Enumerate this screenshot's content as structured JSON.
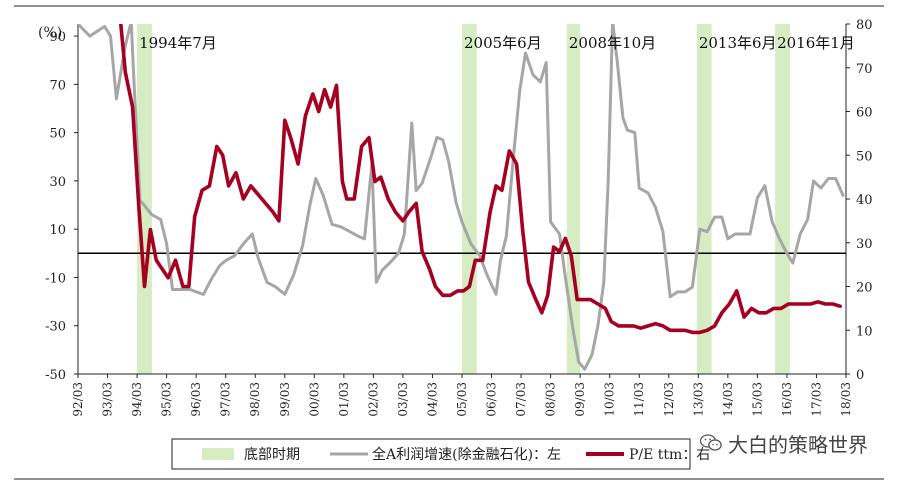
{
  "chart_data": {
    "type": "line",
    "y_left_unit": "(%)",
    "y_left_range": [
      -50,
      95
    ],
    "y_left_ticks": [
      -50,
      -30,
      -10,
      10,
      30,
      50,
      70,
      90
    ],
    "y_right_range": [
      0,
      80
    ],
    "y_right_ticks": [
      0,
      10,
      20,
      30,
      40,
      50,
      60,
      70,
      80
    ],
    "x_range": [
      1992.0,
      2018.0
    ],
    "x_ticks": [
      "92/03",
      "93/03",
      "94/03",
      "95/03",
      "96/03",
      "97/03",
      "98/03",
      "99/03",
      "00/03",
      "01/03",
      "02/03",
      "03/03",
      "04/03",
      "05/03",
      "06/03",
      "07/03",
      "08/03",
      "09/03",
      "10/03",
      "11/03",
      "12/03",
      "13/03",
      "14/03",
      "15/03",
      "16/03",
      "17/03",
      "18/03"
    ],
    "bottom_periods": [
      {
        "label": "1994年7月",
        "start": 1994.0,
        "end": 1994.5
      },
      {
        "label": "2005年6月",
        "start": 2005.0,
        "end": 2005.5
      },
      {
        "label": "2008年10月",
        "start": 2008.55,
        "end": 2009.0
      },
      {
        "label": "2013年6月",
        "start": 2012.95,
        "end": 2013.45
      },
      {
        "label": "2016年1月",
        "start": 2015.6,
        "end": 2016.1
      }
    ],
    "series": [
      {
        "name": "全A利润增速(除金融石化)：左",
        "axis": "left",
        "color": "#a6a6a6",
        "points": [
          [
            1992.0,
            95
          ],
          [
            1992.4,
            90
          ],
          [
            1992.9,
            94
          ],
          [
            1993.1,
            90
          ],
          [
            1993.3,
            64
          ],
          [
            1993.6,
            86
          ],
          [
            1993.8,
            96
          ],
          [
            1993.9,
            70
          ],
          [
            1994.1,
            22
          ],
          [
            1994.5,
            16
          ],
          [
            1994.8,
            14
          ],
          [
            1995.0,
            4
          ],
          [
            1995.2,
            -15
          ],
          [
            1995.5,
            -15
          ],
          [
            1995.8,
            -15
          ],
          [
            1996.0,
            -16
          ],
          [
            1996.25,
            -17
          ],
          [
            1996.5,
            -11
          ],
          [
            1996.8,
            -5
          ],
          [
            1997.0,
            -3
          ],
          [
            1997.3,
            -1
          ],
          [
            1997.6,
            4
          ],
          [
            1997.9,
            8
          ],
          [
            1998.1,
            -2
          ],
          [
            1998.4,
            -12
          ],
          [
            1998.7,
            -14
          ],
          [
            1999.0,
            -17
          ],
          [
            1999.3,
            -9
          ],
          [
            1999.6,
            3
          ],
          [
            1999.85,
            20
          ],
          [
            2000.05,
            31
          ],
          [
            2000.3,
            24
          ],
          [
            2000.6,
            12
          ],
          [
            2000.9,
            11
          ],
          [
            2001.2,
            9
          ],
          [
            2001.5,
            7
          ],
          [
            2001.7,
            6
          ],
          [
            2001.95,
            37
          ],
          [
            2002.1,
            -12
          ],
          [
            2002.3,
            -7
          ],
          [
            2002.55,
            -4
          ],
          [
            2002.85,
            0
          ],
          [
            2003.05,
            8
          ],
          [
            2003.3,
            54
          ],
          [
            2003.45,
            26
          ],
          [
            2003.65,
            29
          ],
          [
            2003.95,
            40
          ],
          [
            2004.15,
            48
          ],
          [
            2004.35,
            47
          ],
          [
            2004.55,
            38
          ],
          [
            2004.8,
            21
          ],
          [
            2005.0,
            13
          ],
          [
            2005.3,
            4
          ],
          [
            2005.6,
            -1
          ],
          [
            2005.85,
            -9
          ],
          [
            2006.0,
            -13
          ],
          [
            2006.15,
            -17
          ],
          [
            2006.3,
            -3
          ],
          [
            2006.5,
            7
          ],
          [
            2006.75,
            41
          ],
          [
            2006.95,
            67
          ],
          [
            2007.15,
            83
          ],
          [
            2007.4,
            74
          ],
          [
            2007.65,
            71
          ],
          [
            2007.85,
            79
          ],
          [
            2008.0,
            13
          ],
          [
            2008.3,
            8
          ],
          [
            2008.5,
            -10
          ],
          [
            2008.75,
            -31
          ],
          [
            2008.95,
            -45
          ],
          [
            2009.15,
            -48
          ],
          [
            2009.4,
            -42
          ],
          [
            2009.6,
            -30
          ],
          [
            2009.8,
            -12
          ],
          [
            2009.95,
            30
          ],
          [
            2010.1,
            96
          ],
          [
            2010.25,
            80
          ],
          [
            2010.45,
            56
          ],
          [
            2010.6,
            51
          ],
          [
            2010.85,
            50
          ],
          [
            2011.0,
            27
          ],
          [
            2011.3,
            25
          ],
          [
            2011.55,
            19
          ],
          [
            2011.8,
            9
          ],
          [
            2012.05,
            -18
          ],
          [
            2012.3,
            -16
          ],
          [
            2012.55,
            -16
          ],
          [
            2012.8,
            -14
          ],
          [
            2013.05,
            10
          ],
          [
            2013.3,
            9
          ],
          [
            2013.55,
            15
          ],
          [
            2013.8,
            15
          ],
          [
            2014.0,
            6
          ],
          [
            2014.25,
            8
          ],
          [
            2014.5,
            8
          ],
          [
            2014.75,
            8
          ],
          [
            2015.0,
            23
          ],
          [
            2015.25,
            28
          ],
          [
            2015.5,
            13
          ],
          [
            2015.75,
            6
          ],
          [
            2016.0,
            0
          ],
          [
            2016.2,
            -4
          ],
          [
            2016.45,
            8
          ],
          [
            2016.7,
            14
          ],
          [
            2016.9,
            30
          ],
          [
            2017.15,
            27
          ],
          [
            2017.4,
            31
          ],
          [
            2017.65,
            31
          ],
          [
            2017.9,
            24
          ]
        ]
      },
      {
        "name": "P/E ttm：右",
        "axis": "right",
        "color": "#a50021",
        "points": [
          [
            1993.45,
            80
          ],
          [
            1993.6,
            69
          ],
          [
            1993.85,
            61
          ],
          [
            1994.05,
            39
          ],
          [
            1994.25,
            20
          ],
          [
            1994.45,
            33
          ],
          [
            1994.65,
            26
          ],
          [
            1994.85,
            24
          ],
          [
            1995.05,
            22
          ],
          [
            1995.3,
            26
          ],
          [
            1995.55,
            20
          ],
          [
            1995.75,
            20
          ],
          [
            1995.95,
            36
          ],
          [
            1996.2,
            42
          ],
          [
            1996.45,
            43
          ],
          [
            1996.7,
            52
          ],
          [
            1996.9,
            50
          ],
          [
            1997.1,
            43
          ],
          [
            1997.35,
            46
          ],
          [
            1997.6,
            40
          ],
          [
            1997.85,
            43
          ],
          [
            1998.1,
            41
          ],
          [
            1998.35,
            39
          ],
          [
            1998.6,
            37
          ],
          [
            1998.8,
            35
          ],
          [
            1999.0,
            58
          ],
          [
            1999.2,
            54
          ],
          [
            1999.45,
            48
          ],
          [
            1999.7,
            59
          ],
          [
            1999.95,
            64
          ],
          [
            2000.15,
            60
          ],
          [
            2000.35,
            65
          ],
          [
            2000.55,
            61
          ],
          [
            2000.75,
            66
          ],
          [
            2000.95,
            44
          ],
          [
            2001.1,
            40
          ],
          [
            2001.35,
            40
          ],
          [
            2001.6,
            52
          ],
          [
            2001.85,
            54
          ],
          [
            2002.05,
            44
          ],
          [
            2002.25,
            45
          ],
          [
            2002.5,
            40
          ],
          [
            2002.75,
            37
          ],
          [
            2003.0,
            35
          ],
          [
            2003.2,
            37
          ],
          [
            2003.45,
            39
          ],
          [
            2003.65,
            28
          ],
          [
            2003.9,
            24
          ],
          [
            2004.1,
            20
          ],
          [
            2004.35,
            18
          ],
          [
            2004.6,
            18
          ],
          [
            2004.85,
            19
          ],
          [
            2005.05,
            19
          ],
          [
            2005.25,
            20
          ],
          [
            2005.45,
            26
          ],
          [
            2005.7,
            26
          ],
          [
            2005.95,
            37
          ],
          [
            2006.15,
            43
          ],
          [
            2006.35,
            42
          ],
          [
            2006.6,
            51
          ],
          [
            2006.85,
            48
          ],
          [
            2007.05,
            33
          ],
          [
            2007.25,
            21
          ],
          [
            2007.5,
            17
          ],
          [
            2007.7,
            14
          ],
          [
            2007.9,
            18
          ],
          [
            2008.1,
            29
          ],
          [
            2008.3,
            28
          ],
          [
            2008.5,
            31
          ],
          [
            2008.7,
            27
          ],
          [
            2008.9,
            17
          ],
          [
            2009.1,
            17
          ],
          [
            2009.35,
            17
          ],
          [
            2009.6,
            16
          ],
          [
            2009.85,
            15
          ],
          [
            2010.05,
            12
          ],
          [
            2010.3,
            11
          ],
          [
            2010.55,
            11
          ],
          [
            2010.8,
            11
          ],
          [
            2011.05,
            10.5
          ],
          [
            2011.3,
            11
          ],
          [
            2011.55,
            11.5
          ],
          [
            2011.8,
            11
          ],
          [
            2012.05,
            10
          ],
          [
            2012.3,
            10
          ],
          [
            2012.55,
            10
          ],
          [
            2012.8,
            9.5
          ],
          [
            2013.05,
            9.5
          ],
          [
            2013.3,
            10
          ],
          [
            2013.55,
            11
          ],
          [
            2013.8,
            14
          ],
          [
            2014.05,
            16
          ],
          [
            2014.3,
            19
          ],
          [
            2014.55,
            13
          ],
          [
            2014.8,
            15
          ],
          [
            2015.05,
            14
          ],
          [
            2015.3,
            14
          ],
          [
            2015.55,
            15
          ],
          [
            2015.8,
            15
          ],
          [
            2016.05,
            16
          ],
          [
            2016.3,
            16
          ],
          [
            2016.55,
            16
          ],
          [
            2016.8,
            16
          ],
          [
            2017.05,
            16.5
          ],
          [
            2017.3,
            16
          ],
          [
            2017.55,
            16
          ],
          [
            2017.8,
            15.5
          ]
        ]
      }
    ]
  },
  "legend": {
    "bottom_label": "底部时期",
    "series1_label": "全A利润增速(除金融石化)：左",
    "series2_label": "P/E ttm：右"
  },
  "watermark": "大白的策略世界",
  "colors": {
    "band": "#d6ecc2",
    "profit": "#a6a6a6",
    "pe": "#a50021",
    "axis": "#222222"
  }
}
